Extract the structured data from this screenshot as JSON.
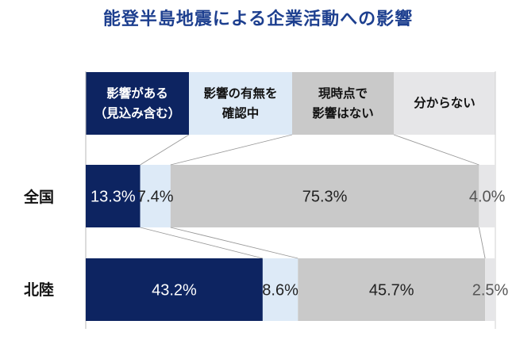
{
  "chart_data": {
    "type": "bar",
    "orientation": "horizontal",
    "stacked": "100%",
    "title": "能登半島地震による企業活動への影響",
    "categories": [
      "全国",
      "北陸"
    ],
    "series": [
      {
        "name": "影響がある\n（見込み含む）",
        "values": [
          13.3,
          43.2
        ],
        "labels": [
          "13.3%",
          "43.2%"
        ],
        "color": "#0d2461",
        "label_color": "#ffffff"
      },
      {
        "name": "影響の有無を\n確認中",
        "values": [
          7.4,
          8.6
        ],
        "labels": [
          "7.4%",
          "8.6%"
        ],
        "color": "#ddeaf7",
        "label_color": "#222222"
      },
      {
        "name": "現時点で\n影響はない",
        "values": [
          75.3,
          45.7
        ],
        "labels": [
          "75.3%",
          "45.7%"
        ],
        "color": "#c9c9c9",
        "label_color": "#222222"
      },
      {
        "name": "分からない",
        "values": [
          4.0,
          2.5
        ],
        "labels": [
          "4.0%",
          "2.5%"
        ],
        "color": "#e6e6e8",
        "label_color": "#555555"
      }
    ],
    "xlim": [
      0,
      100
    ],
    "grid": false,
    "legend_position": "top"
  }
}
